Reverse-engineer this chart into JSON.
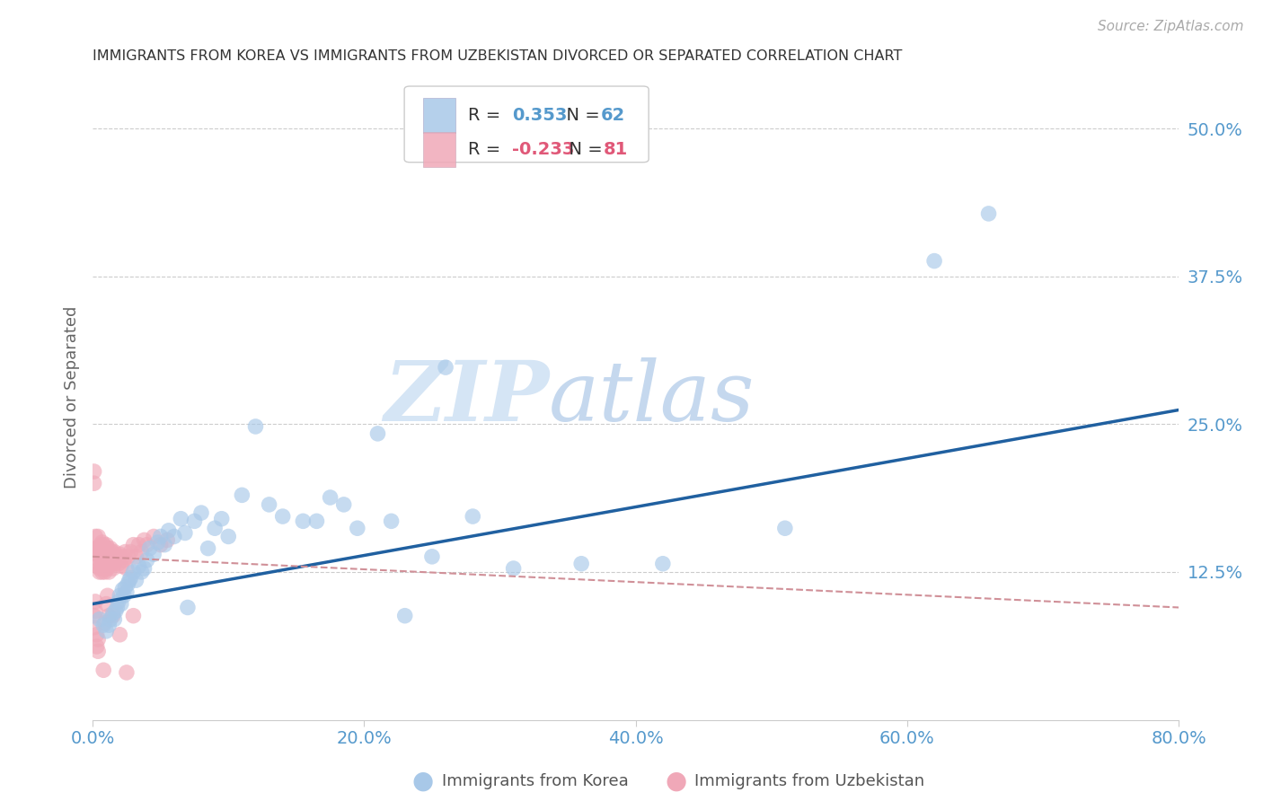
{
  "title": "IMMIGRANTS FROM KOREA VS IMMIGRANTS FROM UZBEKISTAN DIVORCED OR SEPARATED CORRELATION CHART",
  "source": "Source: ZipAtlas.com",
  "ylabel": "Divorced or Separated",
  "xlim": [
    0.0,
    0.8
  ],
  "ylim": [
    0.0,
    0.545
  ],
  "xticks": [
    0.0,
    0.2,
    0.4,
    0.6,
    0.8
  ],
  "xtick_labels": [
    "0.0%",
    "20.0%",
    "40.0%",
    "60.0%",
    "80.0%"
  ],
  "yticks": [
    0.125,
    0.25,
    0.375,
    0.5
  ],
  "ytick_labels": [
    "12.5%",
    "25.0%",
    "37.5%",
    "50.0%"
  ],
  "korea_R": 0.353,
  "korea_N": 62,
  "uzbek_R": -0.233,
  "uzbek_N": 81,
  "korea_color": "#a8c8e8",
  "uzbek_color": "#f0a8b8",
  "korea_line_color": "#2060a0",
  "uzbek_line_color": "#d09098",
  "watermark_zip": "ZIP",
  "watermark_atlas": "atlas",
  "background_color": "#ffffff",
  "grid_color": "#cccccc",
  "tick_color": "#5599cc",
  "korea_x": [
    0.005,
    0.008,
    0.01,
    0.012,
    0.013,
    0.015,
    0.016,
    0.017,
    0.018,
    0.019,
    0.02,
    0.021,
    0.022,
    0.023,
    0.024,
    0.025,
    0.026,
    0.027,
    0.028,
    0.03,
    0.032,
    0.034,
    0.036,
    0.038,
    0.04,
    0.042,
    0.045,
    0.048,
    0.05,
    0.053,
    0.056,
    0.06,
    0.065,
    0.068,
    0.07,
    0.075,
    0.08,
    0.085,
    0.09,
    0.095,
    0.1,
    0.11,
    0.12,
    0.13,
    0.14,
    0.155,
    0.165,
    0.175,
    0.185,
    0.195,
    0.21,
    0.22,
    0.23,
    0.25,
    0.26,
    0.28,
    0.31,
    0.36,
    0.42,
    0.51,
    0.62,
    0.66
  ],
  "korea_y": [
    0.085,
    0.08,
    0.075,
    0.08,
    0.085,
    0.09,
    0.085,
    0.092,
    0.095,
    0.1,
    0.105,
    0.098,
    0.11,
    0.105,
    0.112,
    0.108,
    0.115,
    0.118,
    0.12,
    0.125,
    0.118,
    0.13,
    0.125,
    0.128,
    0.135,
    0.145,
    0.14,
    0.15,
    0.155,
    0.148,
    0.16,
    0.155,
    0.17,
    0.158,
    0.095,
    0.168,
    0.175,
    0.145,
    0.162,
    0.17,
    0.155,
    0.19,
    0.248,
    0.182,
    0.172,
    0.168,
    0.168,
    0.188,
    0.182,
    0.162,
    0.242,
    0.168,
    0.088,
    0.138,
    0.298,
    0.172,
    0.128,
    0.132,
    0.132,
    0.162,
    0.388,
    0.428
  ],
  "uzbek_x": [
    0.001,
    0.001,
    0.002,
    0.002,
    0.003,
    0.003,
    0.004,
    0.004,
    0.005,
    0.005,
    0.005,
    0.006,
    0.006,
    0.006,
    0.007,
    0.007,
    0.007,
    0.008,
    0.008,
    0.008,
    0.009,
    0.009,
    0.009,
    0.01,
    0.01,
    0.01,
    0.011,
    0.011,
    0.011,
    0.012,
    0.012,
    0.012,
    0.013,
    0.013,
    0.014,
    0.014,
    0.015,
    0.015,
    0.016,
    0.016,
    0.017,
    0.018,
    0.019,
    0.02,
    0.021,
    0.022,
    0.023,
    0.024,
    0.025,
    0.026,
    0.028,
    0.03,
    0.032,
    0.034,
    0.036,
    0.038,
    0.04,
    0.045,
    0.05,
    0.055,
    0.001,
    0.001,
    0.002,
    0.002,
    0.003,
    0.003,
    0.004,
    0.004,
    0.005,
    0.005,
    0.006,
    0.007,
    0.008,
    0.009,
    0.01,
    0.011,
    0.012,
    0.015,
    0.02,
    0.025,
    0.03
  ],
  "uzbek_y": [
    0.2,
    0.21,
    0.145,
    0.155,
    0.13,
    0.14,
    0.145,
    0.155,
    0.128,
    0.138,
    0.145,
    0.13,
    0.14,
    0.148,
    0.128,
    0.138,
    0.125,
    0.13,
    0.14,
    0.148,
    0.125,
    0.135,
    0.145,
    0.128,
    0.138,
    0.148,
    0.128,
    0.135,
    0.145,
    0.13,
    0.14,
    0.125,
    0.135,
    0.145,
    0.132,
    0.142,
    0.128,
    0.138,
    0.132,
    0.142,
    0.135,
    0.138,
    0.132,
    0.14,
    0.13,
    0.138,
    0.135,
    0.142,
    0.128,
    0.138,
    0.142,
    0.148,
    0.138,
    0.148,
    0.142,
    0.152,
    0.148,
    0.155,
    0.148,
    0.152,
    0.088,
    0.078,
    0.1,
    0.092,
    0.062,
    0.072,
    0.068,
    0.058,
    0.125,
    0.135,
    0.145,
    0.15,
    0.042,
    0.082,
    0.098,
    0.105,
    0.088,
    0.088,
    0.072,
    0.04,
    0.088
  ],
  "korea_line_x0": 0.0,
  "korea_line_y0": 0.098,
  "korea_line_x1": 0.8,
  "korea_line_y1": 0.262,
  "uzbek_line_x0": 0.0,
  "uzbek_line_y0": 0.138,
  "uzbek_line_x1": 0.8,
  "uzbek_line_y1": 0.095
}
